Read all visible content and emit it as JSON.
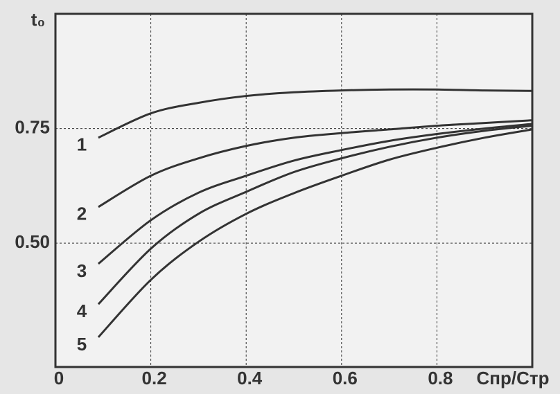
{
  "chart_data": {
    "type": "line",
    "x_label": "Cпр/Cтр",
    "y_label": "t₀",
    "x": [
      0.09,
      0.2,
      0.3,
      0.4,
      0.5,
      0.6,
      0.7,
      0.8,
      0.9,
      1.0
    ],
    "series": [
      {
        "name": "1",
        "color": "#333333",
        "values": [
          0.73,
          0.783,
          0.806,
          0.821,
          0.829,
          0.833,
          0.835,
          0.835,
          0.833,
          0.832
        ]
      },
      {
        "name": "2",
        "color": "#333333",
        "values": [
          0.579,
          0.647,
          0.685,
          0.712,
          0.73,
          0.74,
          0.748,
          0.756,
          0.762,
          0.768
        ]
      },
      {
        "name": "3",
        "color": "#333333",
        "values": [
          0.455,
          0.55,
          0.61,
          0.647,
          0.68,
          0.703,
          0.723,
          0.738,
          0.75,
          0.76
        ]
      },
      {
        "name": "4",
        "color": "#333333",
        "values": [
          0.367,
          0.488,
          0.564,
          0.612,
          0.655,
          0.685,
          0.71,
          0.73,
          0.745,
          0.756
        ]
      },
      {
        "name": "5",
        "color": "#333333",
        "values": [
          0.295,
          0.42,
          0.503,
          0.564,
          0.609,
          0.647,
          0.682,
          0.708,
          0.73,
          0.748
        ]
      }
    ],
    "xlim": [
      0,
      1.0
    ],
    "ylim": [
      0.23,
      1.0
    ],
    "xticks": [
      0,
      0.2,
      0.4,
      0.6,
      0.8
    ],
    "yticks": [
      {
        "value": 0.5,
        "label": "0.50"
      },
      0.75
    ],
    "grid": true
  }
}
